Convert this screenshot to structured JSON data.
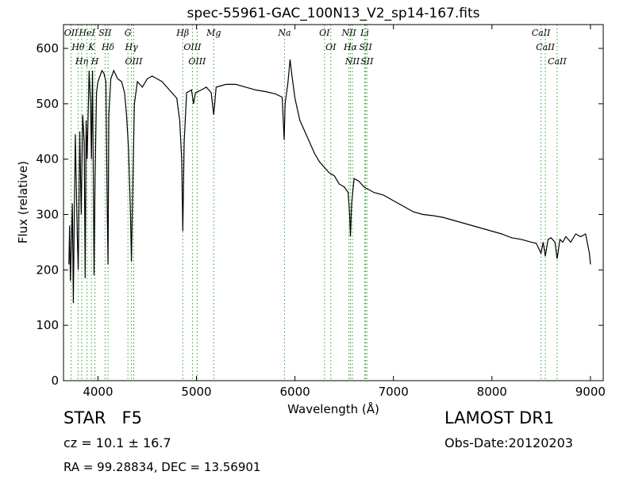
{
  "chart_data": {
    "type": "line",
    "title": "spec-55961-GAC_100N13_V2_sp14-167.fits",
    "xlabel": "Wavelength (Å)",
    "ylabel": "Flux (relative)",
    "xlim": [
      3650,
      9130
    ],
    "ylim": [
      0,
      643
    ],
    "xticks": [
      4000,
      5000,
      6000,
      7000,
      8000,
      9000
    ],
    "yticks": [
      0,
      100,
      200,
      300,
      400,
      500,
      600
    ],
    "x": [
      3705,
      3712,
      3720,
      3740,
      3750,
      3760,
      3770,
      3790,
      3800,
      3815,
      3830,
      3845,
      3860,
      3870,
      3880,
      3890,
      3910,
      3925,
      3934,
      3945,
      3960,
      3970,
      3985,
      4000,
      4020,
      4040,
      4060,
      4080,
      4095,
      4102,
      4110,
      4130,
      4160,
      4200,
      4240,
      4270,
      4290,
      4310,
      4330,
      4340,
      4350,
      4370,
      4400,
      4450,
      4500,
      4550,
      4600,
      4650,
      4700,
      4750,
      4800,
      4830,
      4850,
      4861,
      4875,
      4900,
      4950,
      4970,
      4990,
      5050,
      5100,
      5150,
      5175,
      5185,
      5200,
      5300,
      5400,
      5500,
      5600,
      5700,
      5800,
      5870,
      5890,
      5900,
      5930,
      5950,
      5970,
      6000,
      6050,
      6100,
      6150,
      6200,
      6250,
      6300,
      6350,
      6400,
      6450,
      6500,
      6540,
      6555,
      6563,
      6575,
      6600,
      6650,
      6700,
      6800,
      6900,
      7000,
      7100,
      7200,
      7300,
      7400,
      7500,
      7600,
      7700,
      7800,
      7900,
      8000,
      8100,
      8200,
      8300,
      8400,
      8450,
      8498,
      8520,
      8542,
      8570,
      8600,
      8640,
      8662,
      8690,
      8720,
      8750,
      8800,
      8850,
      8900,
      8950,
      8990,
      9000
    ],
    "series": [
      {
        "color": "#000000",
        "values": [
          210,
          280,
          180,
          320,
          140,
          300,
          445,
          260,
          200,
          450,
          300,
          480,
          430,
          185,
          470,
          400,
          560,
          500,
          400,
          560,
          190,
          360,
          520,
          540,
          550,
          560,
          555,
          540,
          300,
          210,
          480,
          545,
          560,
          545,
          540,
          520,
          480,
          420,
          300,
          215,
          320,
          500,
          540,
          530,
          545,
          550,
          545,
          540,
          530,
          520,
          510,
          470,
          400,
          270,
          430,
          520,
          525,
          500,
          520,
          525,
          530,
          520,
          480,
          500,
          530,
          535,
          535,
          530,
          525,
          522,
          518,
          512,
          435,
          500,
          540,
          580,
          550,
          510,
          470,
          450,
          430,
          410,
          395,
          385,
          375,
          370,
          355,
          350,
          340,
          300,
          260,
          320,
          365,
          360,
          350,
          340,
          335,
          325,
          315,
          305,
          300,
          298,
          295,
          290,
          285,
          280,
          275,
          270,
          265,
          258,
          255,
          250,
          248,
          230,
          250,
          225,
          255,
          258,
          250,
          220,
          255,
          250,
          260,
          250,
          265,
          260,
          265,
          230,
          210
        ]
      }
    ],
    "line_markers": [
      {
        "wavelength": 3727,
        "label": "OII"
      },
      {
        "wavelength": 3798,
        "label": "Hθ"
      },
      {
        "wavelength": 3835,
        "label": "Hη"
      },
      {
        "wavelength": 3889,
        "label": "HeI"
      },
      {
        "wavelength": 3934,
        "label": "K"
      },
      {
        "wavelength": 3969,
        "label": "H"
      },
      {
        "wavelength": 4072,
        "label": "SII"
      },
      {
        "wavelength": 4102,
        "label": "Hδ"
      },
      {
        "wavelength": 4304,
        "label": "G"
      },
      {
        "wavelength": 4340,
        "label": "Hγ"
      },
      {
        "wavelength": 4363,
        "label": "OIII"
      },
      {
        "wavelength": 4861,
        "label": "Hβ"
      },
      {
        "wavelength": 4959,
        "label": "OIII"
      },
      {
        "wavelength": 5007,
        "label": "OIII"
      },
      {
        "wavelength": 5175,
        "label": "Mg"
      },
      {
        "wavelength": 5894,
        "label": "Na"
      },
      {
        "wavelength": 6300,
        "label": "OI"
      },
      {
        "wavelength": 6364,
        "label": "OI"
      },
      {
        "wavelength": 6548,
        "label": "NII"
      },
      {
        "wavelength": 6563,
        "label": "Hα"
      },
      {
        "wavelength": 6583,
        "label": "NII"
      },
      {
        "wavelength": 6708,
        "label": "Li"
      },
      {
        "wavelength": 6717,
        "label": "SII"
      },
      {
        "wavelength": 6731,
        "label": "SII"
      },
      {
        "wavelength": 8498,
        "label": "CaII"
      },
      {
        "wavelength": 8542,
        "label": "CaII"
      },
      {
        "wavelength": 8662,
        "label": "CaII"
      }
    ],
    "marker_color": "#2ca02c",
    "annotations": [
      "STAR   F5",
      "LAMOST DR1",
      "cz = 10.1 ± 16.7",
      "Obs-Date:20120203",
      "RA = 99.28834, DEC = 13.56901"
    ]
  }
}
